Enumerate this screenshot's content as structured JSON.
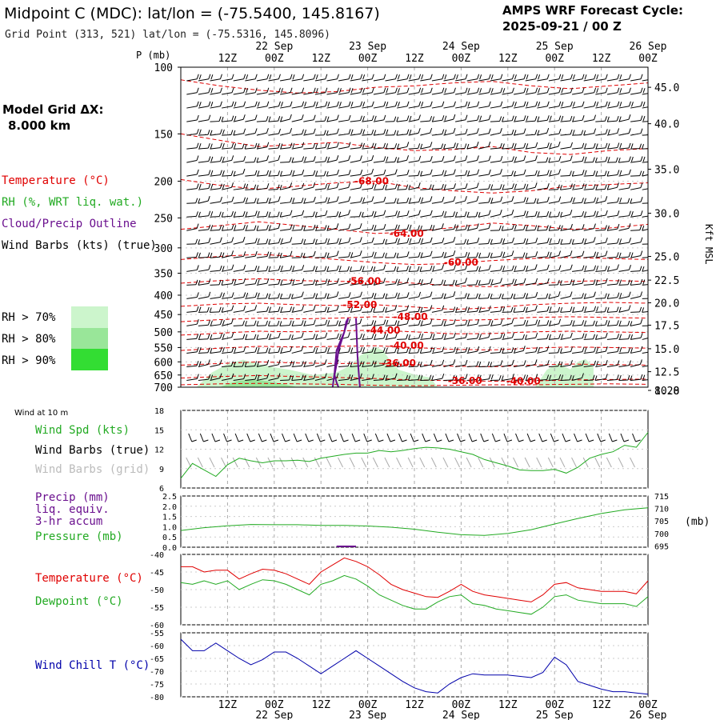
{
  "header": {
    "title": "Midpoint C (MDC):  lat/lon = (-75.5400, 145.8167)",
    "grid_point": "Grid Point (313, 521) lat/lon = (-75.5316, 145.8096)",
    "cycle_label": "AMPS WRF Forecast Cycle:",
    "cycle_value": "2025-09-21 / 00  Z"
  },
  "time_axis": {
    "hour_labels": [
      "12Z",
      "00Z",
      "12Z",
      "00Z",
      "12Z",
      "00Z",
      "12Z",
      "00Z",
      "12Z",
      "00Z"
    ],
    "day_labels": [
      "22 Sep",
      "23 Sep",
      "24 Sep",
      "25 Sep",
      "26 Sep"
    ],
    "hours": [
      12,
      24,
      36,
      48,
      60,
      72,
      84,
      96,
      108,
      120
    ],
    "range_hours": [
      0,
      120
    ]
  },
  "side_labels": {
    "model_grid_title": "Model Grid ΔX:",
    "model_grid_value": "8.000 km",
    "temperature": "Temperature (°C)",
    "rh": "RH (%, WRT liq. wat.)",
    "cloud": "Cloud/Precip Outline",
    "wind_barbs": "Wind Barbs (kts) (true)",
    "rh70": "RH > 70%",
    "rh80": "RH > 80%",
    "rh90": "RH > 90%"
  },
  "colors": {
    "temperature": "#e00000",
    "rh_green": "#22aa22",
    "cloud_purple": "#6a0f8e",
    "rh70_fill": "#ccf5cc",
    "rh80_fill": "#99e699",
    "rh90_fill": "#33dd33",
    "chill_blue": "#0000aa",
    "grid_grey": "#aaaaaa"
  },
  "chart_data": [
    {
      "type": "heatmap",
      "name": "sounding-time-height",
      "y_axis_title": "P (mb)",
      "pressure_ticks": [
        100,
        150,
        200,
        250,
        300,
        350,
        400,
        450,
        500,
        550,
        600,
        650,
        700
      ],
      "right_axis_title": "Kft MSL",
      "kft_ticks": [
        "45.0",
        "40.0",
        "35.0",
        "30.0",
        "25.0",
        "22.5",
        "20.0",
        "17.5",
        "15.0",
        "12.5",
        "10.0",
        "8.28"
      ],
      "kft_tick_pressures": [
        113,
        141,
        186,
        243,
        316,
        365,
        419,
        480,
        554,
        637,
        728,
        800
      ],
      "temperature_labels": [
        {
          "text": "-68.00",
          "hour": 49,
          "p": 200
        },
        {
          "text": "-64.00",
          "hour": 58,
          "p": 275
        },
        {
          "text": "-60.00",
          "hour": 72,
          "p": 328
        },
        {
          "text": "-56.00",
          "hour": 47,
          "p": 367
        },
        {
          "text": "-52.00",
          "hour": 46,
          "p": 424
        },
        {
          "text": "-48.00",
          "hour": 59,
          "p": 456
        },
        {
          "text": "-44.00",
          "hour": 52,
          "p": 495
        },
        {
          "text": "-40.00",
          "hour": 58,
          "p": 544
        },
        {
          "text": "-36.00",
          "hour": 56,
          "p": 605
        },
        {
          "text": "-36.00",
          "hour": 73,
          "p": 673
        },
        {
          "text": "-40.00",
          "hour": 88,
          "p": 675
        }
      ],
      "temperature_contours": [
        {
          "hours": [
            0,
            10,
            20,
            30,
            40,
            50,
            60,
            70,
            80,
            90,
            100,
            110,
            120
          ],
          "p": [
            108,
            112,
            115,
            117,
            116,
            113,
            112,
            110,
            109,
            112,
            114,
            112,
            110
          ]
        },
        {
          "hours": [
            0,
            10,
            20,
            30,
            40,
            50,
            60,
            70,
            80,
            90,
            100,
            110,
            120
          ],
          "p": [
            150,
            156,
            162,
            160,
            158,
            163,
            166,
            165,
            162,
            168,
            170,
            166,
            164
          ]
        },
        {
          "hours": [
            0,
            10,
            20,
            30,
            40,
            50,
            60,
            70,
            80,
            90,
            100,
            110,
            120
          ],
          "p": [
            198,
            205,
            210,
            206,
            202,
            200,
            208,
            212,
            215,
            212,
            206,
            204,
            202
          ]
        },
        {
          "hours": [
            0,
            10,
            20,
            30,
            40,
            50,
            60,
            70,
            80,
            90,
            100,
            110,
            120
          ],
          "p": [
            268,
            262,
            256,
            262,
            268,
            275,
            272,
            265,
            258,
            262,
            268,
            266,
            260
          ]
        },
        {
          "hours": [
            0,
            10,
            20,
            30,
            40,
            50,
            60,
            70,
            80,
            90,
            100,
            110,
            120
          ],
          "p": [
            322,
            316,
            312,
            316,
            322,
            328,
            332,
            330,
            324,
            320,
            318,
            320,
            322
          ]
        },
        {
          "hours": [
            0,
            10,
            20,
            30,
            40,
            50,
            60,
            70,
            80,
            90,
            100,
            110,
            120
          ],
          "p": [
            372,
            366,
            362,
            366,
            368,
            367,
            372,
            378,
            380,
            374,
            368,
            366,
            368
          ]
        },
        {
          "hours": [
            0,
            10,
            20,
            30,
            40,
            50,
            60,
            70,
            80,
            90,
            100,
            110,
            120
          ],
          "p": [
            428,
            422,
            420,
            424,
            426,
            424,
            430,
            436,
            432,
            424,
            420,
            418,
            420
          ]
        },
        {
          "hours": [
            0,
            10,
            20,
            30,
            40,
            50,
            60,
            70,
            80,
            90,
            100,
            110,
            120
          ],
          "p": [
            470,
            464,
            460,
            462,
            460,
            456,
            460,
            466,
            464,
            458,
            456,
            458,
            460
          ]
        },
        {
          "hours": [
            0,
            10,
            20,
            30,
            40,
            50,
            60,
            70,
            80,
            90,
            100,
            110,
            120
          ],
          "p": [
            510,
            504,
            498,
            500,
            497,
            495,
            500,
            506,
            505,
            500,
            498,
            500,
            502
          ]
        },
        {
          "hours": [
            0,
            10,
            20,
            30,
            40,
            50,
            60,
            70,
            80,
            90,
            100,
            110,
            120
          ],
          "p": [
            560,
            552,
            546,
            548,
            546,
            544,
            550,
            556,
            558,
            552,
            548,
            550,
            552
          ]
        },
        {
          "hours": [
            0,
            10,
            20,
            30,
            40,
            50,
            60,
            70,
            80,
            90,
            100,
            110,
            120
          ],
          "p": [
            612,
            606,
            600,
            604,
            606,
            605,
            610,
            616,
            618,
            612,
            608,
            610,
            612
          ]
        },
        {
          "hours": [
            0,
            10,
            20,
            30,
            40,
            50,
            60,
            70,
            80,
            90,
            100,
            110,
            120
          ],
          "p": [
            662,
            656,
            652,
            656,
            660,
            664,
            670,
            673,
            675,
            674,
            670,
            668,
            666
          ]
        },
        {
          "hours": [
            0,
            10,
            20,
            30,
            40,
            50,
            60,
            70,
            80,
            90,
            100,
            110,
            120
          ],
          "p": [
            690,
            686,
            684,
            686,
            688,
            692,
            694,
            692,
            690,
            690,
            688,
            686,
            688
          ]
        }
      ],
      "rh70_region": {
        "hours": [
          4,
          8,
          12,
          16,
          20,
          24,
          28,
          34,
          40,
          44,
          46,
          50,
          52,
          54,
          56,
          60,
          64,
          66,
          60,
          56,
          50,
          46,
          40,
          30,
          20,
          10,
          4
        ],
        "p": [
          700,
          640,
          608,
          592,
          608,
          620,
          630,
          650,
          640,
          610,
          578,
          548,
          560,
          600,
          630,
          648,
          660,
          700,
          702,
          704,
          704,
          704,
          704,
          704,
          704,
          704,
          700
        ]
      },
      "rh70_region_b": {
        "hours": [
          91,
          94,
          97,
          100,
          102,
          104,
          106,
          106,
          100,
          94,
          91
        ],
        "p": [
          700,
          630,
          605,
          628,
          600,
          590,
          620,
          700,
          702,
          702,
          700
        ]
      },
      "rh80_region": {
        "hours": [
          10,
          14,
          18,
          22,
          26,
          30,
          26,
          20,
          14,
          10
        ],
        "p": [
          700,
          676,
          668,
          674,
          686,
          700,
          702,
          703,
          703,
          700
        ]
      },
      "cloud_outline_a": {
        "hours": [
          39,
          39.5,
          40,
          42,
          42.5,
          43,
          42,
          40.5,
          40,
          39.5,
          40,
          40.5
        ],
        "p": [
          700,
          640,
          560,
          500,
          470,
          460,
          500,
          560,
          610,
          650,
          680,
          700
        ]
      },
      "cloud_outline_b": {
        "hours": [
          45,
          45.2,
          45.4,
          45.6,
          45.8,
          46
        ],
        "p": [
          460,
          520,
          580,
          620,
          660,
          700
        ]
      }
    },
    {
      "type": "line",
      "name": "wind-10m",
      "panel_title": "Wind at 10 m",
      "labels": [
        "Wind Spd (kts)",
        "Wind Barbs (true)",
        "Wind Barbs (grid)"
      ],
      "y_ticks": [
        6,
        9,
        12,
        15,
        18
      ],
      "ylim": [
        6,
        18
      ],
      "x": [
        0,
        3,
        6,
        9,
        12,
        15,
        18,
        21,
        24,
        27,
        30,
        33,
        36,
        39,
        42,
        45,
        48,
        51,
        54,
        57,
        60,
        63,
        66,
        69,
        72,
        75,
        78,
        81,
        84,
        87,
        90,
        93,
        96,
        99,
        102,
        105,
        108,
        111,
        114,
        117,
        120
      ],
      "values": [
        7.5,
        9.8,
        8.8,
        7.8,
        9.6,
        10.6,
        10.2,
        9.9,
        10.2,
        10.2,
        10.3,
        10.1,
        10.6,
        10.9,
        11.2,
        11.4,
        11.4,
        11.8,
        11.6,
        11.8,
        12.1,
        12.3,
        12.2,
        12.0,
        11.6,
        11.2,
        10.4,
        9.9,
        9.4,
        8.8,
        8.7,
        8.7,
        8.9,
        8.3,
        9.2,
        10.6,
        11.2,
        11.6,
        12.6,
        12.3,
        14.6
      ]
    },
    {
      "type": "line",
      "name": "precip-pressure",
      "labels": [
        "Precip (mm)",
        "liq. equiv.",
        "3-hr accum",
        "Pressure (mb)"
      ],
      "precip_ticks": [
        "0.0",
        "0.5",
        "1.0",
        "1.5",
        "2.0",
        "2.5"
      ],
      "precip_lim": [
        0,
        2.5
      ],
      "pressure_ticks": [
        695,
        700,
        705,
        710,
        715
      ],
      "pressure_lim": [
        694.5,
        715
      ],
      "pressure_unit": "(mb)",
      "x": [
        0,
        6,
        12,
        18,
        24,
        30,
        36,
        42,
        48,
        54,
        60,
        66,
        72,
        78,
        84,
        90,
        96,
        102,
        108,
        114,
        120
      ],
      "pressure": [
        701.2,
        702.3,
        703.1,
        703.6,
        703.5,
        703.5,
        703.2,
        703.2,
        703.0,
        702.5,
        701.7,
        700.5,
        699.5,
        699.2,
        700.0,
        701.5,
        703.8,
        706.0,
        708.0,
        709.5,
        710.3
      ],
      "precip": [
        0,
        0,
        0,
        0,
        0,
        0,
        0,
        0.05,
        0,
        0,
        0,
        0,
        0,
        0,
        0,
        0,
        0,
        0,
        0,
        0,
        0
      ]
    },
    {
      "type": "line",
      "name": "temperature-dewpoint",
      "labels": [
        "Temperature (°C)",
        "Dewpoint (°C)"
      ],
      "y_ticks": [
        -60,
        -55,
        -50,
        -45,
        -40
      ],
      "ylim": [
        -60,
        -40
      ],
      "x": [
        0,
        3,
        6,
        9,
        12,
        15,
        18,
        21,
        24,
        27,
        30,
        33,
        36,
        39,
        42,
        45,
        48,
        51,
        54,
        57,
        60,
        63,
        66,
        69,
        72,
        75,
        78,
        81,
        84,
        87,
        90,
        93,
        96,
        99,
        102,
        105,
        108,
        111,
        114,
        117,
        120
      ],
      "series": [
        {
          "name": "Temperature",
          "values": [
            -43.5,
            -43.5,
            -45,
            -44.5,
            -44.5,
            -47,
            -45.5,
            -44.2,
            -44.5,
            -45.5,
            -47,
            -48.5,
            -45,
            -43,
            -41,
            -42,
            -43.5,
            -45.8,
            -48.5,
            -50,
            -51,
            -52,
            -52.2,
            -50.5,
            -48.5,
            -50.5,
            -51.5,
            -52,
            -52.5,
            -53,
            -53.5,
            -51.5,
            -48.5,
            -48,
            -49.5,
            -50,
            -50.5,
            -50.5,
            -50.5,
            -51.2,
            -47.5
          ]
        },
        {
          "name": "Dewpoint",
          "values": [
            -48,
            -48.5,
            -47.5,
            -48.5,
            -47.5,
            -50,
            -48.5,
            -47.2,
            -47.5,
            -48.5,
            -50,
            -51.5,
            -48.5,
            -47.5,
            -46,
            -47,
            -49,
            -51.5,
            -53,
            -54.5,
            -55.5,
            -55.5,
            -53.5,
            -52,
            -51.5,
            -54,
            -54.5,
            -55.5,
            -56,
            -56.5,
            -57,
            -55,
            -52,
            -51.5,
            -53,
            -53.5,
            -54,
            -54,
            -54,
            -54.8,
            -52
          ]
        }
      ]
    },
    {
      "type": "line",
      "name": "wind-chill",
      "labels": [
        "Wind Chill T (°C)"
      ],
      "y_ticks": [
        -80,
        -75,
        -70,
        -65,
        -60,
        -55
      ],
      "ylim": [
        -80,
        -55
      ],
      "x": [
        0,
        3,
        6,
        9,
        12,
        15,
        18,
        21,
        24,
        27,
        30,
        33,
        36,
        39,
        42,
        45,
        48,
        51,
        54,
        57,
        60,
        63,
        66,
        69,
        72,
        75,
        78,
        81,
        84,
        87,
        90,
        93,
        96,
        99,
        102,
        105,
        108,
        111,
        114,
        117,
        120
      ],
      "values": [
        -57.5,
        -62,
        -62,
        -59,
        -62,
        -65,
        -67.5,
        -65.5,
        -62.5,
        -62.5,
        -65,
        -68,
        -71,
        -68,
        -65,
        -62,
        -65,
        -68,
        -71,
        -74,
        -76.5,
        -78,
        -78.5,
        -75,
        -72.5,
        -71,
        -71.5,
        -71.5,
        -71.5,
        -72,
        -72.5,
        -70.5,
        -64.5,
        -67.5,
        -74,
        -75.5,
        -77,
        -78,
        -78,
        -78.5,
        -79
      ]
    }
  ]
}
